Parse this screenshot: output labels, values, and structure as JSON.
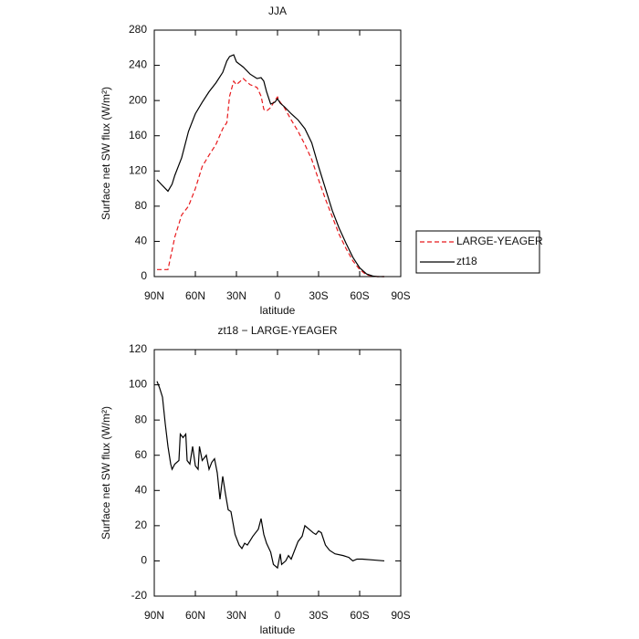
{
  "chart_data": [
    {
      "type": "line",
      "title": "JJA",
      "xlabel": "latitude",
      "ylabel": "Surface net SW flux (W/m²)",
      "x": [
        88,
        85,
        80,
        77,
        75,
        70,
        65,
        60,
        55,
        50,
        45,
        40,
        37,
        35,
        32,
        30,
        25,
        20,
        15,
        12,
        10,
        8,
        5,
        2,
        0,
        -2,
        -5,
        -10,
        -15,
        -20,
        -25,
        -30,
        -35,
        -40,
        -45,
        -50,
        -55,
        -60,
        -65,
        -70,
        -73,
        -75,
        -78
      ],
      "series": [
        {
          "name": "LARGE-YEAGER",
          "color": "#e8191c",
          "style": "dashed",
          "values": [
            8,
            8,
            8,
            30,
            45,
            70,
            80,
            100,
            125,
            138,
            150,
            168,
            175,
            205,
            222,
            218,
            225,
            218,
            215,
            205,
            190,
            188,
            192,
            200,
            204,
            198,
            192,
            178,
            165,
            150,
            133,
            110,
            88,
            68,
            48,
            32,
            18,
            8,
            2,
            0.5,
            0,
            0,
            0
          ]
        },
        {
          "name": "zt18",
          "color": "#000000",
          "style": "solid",
          "values": [
            110,
            105,
            97,
            105,
            115,
            135,
            165,
            185,
            198,
            210,
            220,
            232,
            245,
            250,
            252,
            244,
            238,
            230,
            225,
            226,
            222,
            210,
            196,
            198,
            202,
            197,
            193,
            185,
            178,
            168,
            152,
            125,
            100,
            75,
            55,
            38,
            22,
            10,
            3,
            0.5,
            0,
            0,
            0
          ]
        }
      ],
      "xlim": [
        90,
        -90
      ],
      "xticks": [
        {
          "value": 90,
          "label": "90N"
        },
        {
          "value": 60,
          "label": "60N"
        },
        {
          "value": 30,
          "label": "30N"
        },
        0,
        {
          "value": -30,
          "label": "30S"
        },
        {
          "value": -60,
          "label": "60S"
        },
        {
          "value": -90,
          "label": "90S"
        }
      ],
      "ylim": [
        0,
        280
      ],
      "yticks": [
        0,
        40,
        80,
        120,
        160,
        200,
        240,
        280
      ],
      "legend": "right"
    },
    {
      "type": "line",
      "title": "zt18 − LARGE-YEAGER",
      "xlabel": "latitude",
      "ylabel": "Surface net SW flux (W/m²)",
      "x": [
        88,
        86,
        84,
        82,
        80,
        78,
        77,
        75,
        72,
        71,
        69,
        67,
        66,
        64,
        62,
        60,
        58,
        57,
        55,
        52,
        50,
        48,
        46,
        44,
        42,
        40,
        38,
        36,
        34,
        31,
        28,
        26,
        24,
        22,
        18,
        14,
        12,
        10,
        8,
        5,
        3,
        0,
        -2,
        -3,
        -6,
        -8,
        -10,
        -15,
        -18,
        -20,
        -23,
        -26,
        -28,
        -30,
        -32,
        -35,
        -38,
        -42,
        -48,
        -52,
        -55,
        -58,
        -62,
        -70,
        -78
      ],
      "color": "#000000",
      "values": [
        102,
        98,
        93,
        78,
        65,
        55,
        52,
        55,
        57,
        72,
        70,
        72,
        57,
        55,
        65,
        54,
        52,
        65,
        57,
        60,
        52,
        56,
        58,
        50,
        35,
        48,
        38,
        29,
        28,
        15,
        9,
        7,
        10,
        9,
        14,
        18,
        24,
        15,
        10,
        5,
        -2,
        -4,
        4,
        -2,
        0,
        3,
        1,
        11,
        14,
        20,
        18,
        16,
        15,
        17,
        16,
        9,
        6,
        4,
        3,
        2,
        0,
        1,
        1,
        0.5,
        0
      ],
      "xlim": [
        90,
        -90
      ],
      "xticks": [
        {
          "value": 90,
          "label": "90N"
        },
        {
          "value": 60,
          "label": "60N"
        },
        {
          "value": 30,
          "label": "30N"
        },
        0,
        {
          "value": -30,
          "label": "30S"
        },
        {
          "value": -60,
          "label": "60S"
        },
        {
          "value": -90,
          "label": "90S"
        }
      ],
      "ylim": [
        -20,
        120
      ],
      "yticks": [
        -20,
        0,
        20,
        40,
        60,
        80,
        100,
        120
      ]
    }
  ]
}
